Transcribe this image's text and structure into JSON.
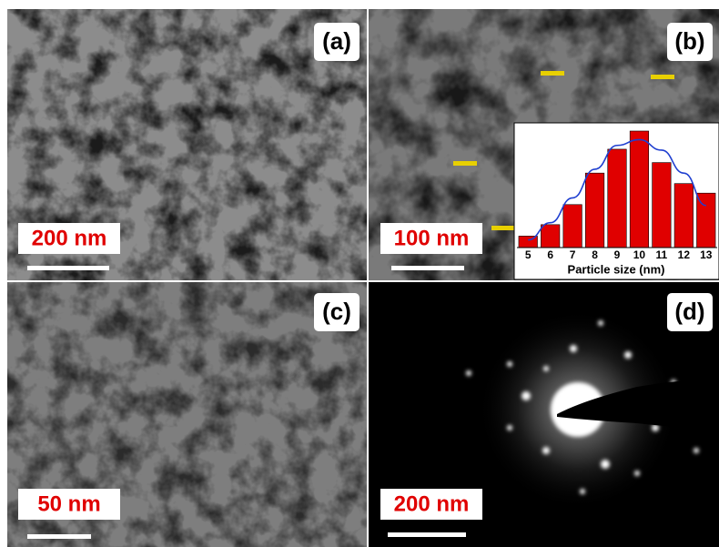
{
  "panels": [
    {
      "label": "(a)",
      "scale": "200 nm"
    },
    {
      "label": "(b)",
      "scale": "100 nm"
    },
    {
      "label": "(c)",
      "scale": "50 nm"
    },
    {
      "label": "(d)",
      "scale": "200 nm"
    }
  ],
  "chart_data": {
    "type": "bar",
    "xlabel": "Particle size (nm)",
    "categories": [
      "5",
      "6",
      "7",
      "8",
      "9",
      "10",
      "11",
      "12",
      "13"
    ],
    "series": [
      {
        "color": "#e00000",
        "values": [
          12,
          24,
          45,
          78,
          103,
          122,
          89,
          67,
          57
        ]
      },
      {
        "type": "line",
        "color": "#1f3fd0",
        "values": [
          8,
          26,
          52,
          82,
          107,
          113,
          102,
          78,
          44
        ]
      }
    ]
  }
}
